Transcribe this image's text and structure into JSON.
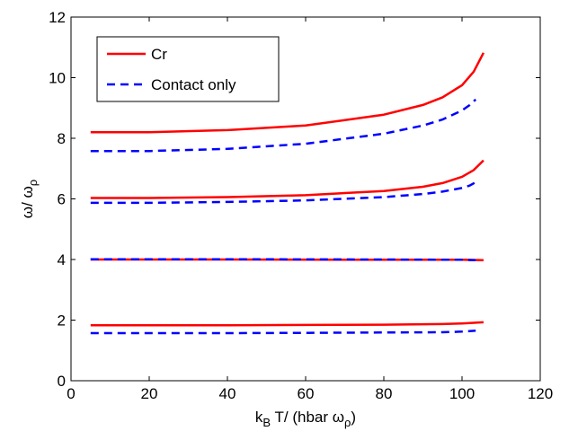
{
  "chart_data": {
    "type": "line",
    "xlabel_main": "k",
    "xlabel_sub": "B",
    "xlabel_rest": " T/ (hbar ω",
    "xlabel_sub2": "ρ",
    "xlabel_end": ")",
    "ylabel_main": "ω/ ω",
    "ylabel_sub": "ρ",
    "xlim": [
      0,
      120
    ],
    "ylim": [
      0,
      12
    ],
    "xticks": [
      0,
      20,
      40,
      60,
      80,
      100,
      120
    ],
    "yticks": [
      0,
      2,
      4,
      6,
      8,
      10,
      12
    ],
    "grid": false,
    "legend_position": "top-left",
    "legend": [
      {
        "name": "Cr",
        "color": "#ff0000",
        "dash": false
      },
      {
        "name": "Contact only",
        "color": "#0000ff",
        "dash": true
      }
    ],
    "series": [
      {
        "name": "Cr",
        "color": "#ff0000",
        "dash": false,
        "x": [
          5,
          20,
          40,
          60,
          80,
          90,
          95,
          100,
          103,
          105.5
        ],
        "y": [
          8.2,
          8.2,
          8.27,
          8.42,
          8.78,
          9.1,
          9.35,
          9.75,
          10.2,
          10.82
        ]
      },
      {
        "name": "Contact only",
        "color": "#0000ff",
        "dash": true,
        "x": [
          5,
          20,
          40,
          60,
          80,
          90,
          95,
          100,
          102,
          103.5
        ],
        "y": [
          7.58,
          7.58,
          7.65,
          7.82,
          8.15,
          8.42,
          8.62,
          8.92,
          9.1,
          9.28
        ]
      },
      {
        "name": "Cr",
        "color": "#ff0000",
        "dash": false,
        "x": [
          5,
          20,
          40,
          60,
          80,
          90,
          95,
          100,
          103,
          105.5
        ],
        "y": [
          6.03,
          6.03,
          6.06,
          6.12,
          6.26,
          6.4,
          6.52,
          6.73,
          6.95,
          7.27
        ]
      },
      {
        "name": "Contact only",
        "color": "#0000ff",
        "dash": true,
        "x": [
          5,
          20,
          40,
          60,
          80,
          90,
          95,
          100,
          102,
          103.5
        ],
        "y": [
          5.87,
          5.87,
          5.9,
          5.95,
          6.06,
          6.16,
          6.24,
          6.36,
          6.44,
          6.55
        ]
      },
      {
        "name": "Cr",
        "color": "#ff0000",
        "dash": false,
        "x": [
          5,
          40,
          80,
          100,
          105.5
        ],
        "y": [
          4.0,
          4.0,
          3.99,
          3.99,
          3.98
        ]
      },
      {
        "name": "Contact only",
        "color": "#0000ff",
        "dash": true,
        "x": [
          5,
          40,
          80,
          100,
          103.5
        ],
        "y": [
          4.01,
          4.01,
          4.0,
          3.99,
          3.98
        ]
      },
      {
        "name": "Cr",
        "color": "#ff0000",
        "dash": false,
        "x": [
          5,
          20,
          40,
          60,
          80,
          95,
          100,
          105.5
        ],
        "y": [
          1.83,
          1.83,
          1.83,
          1.84,
          1.85,
          1.87,
          1.89,
          1.93
        ]
      },
      {
        "name": "Contact only",
        "color": "#0000ff",
        "dash": true,
        "x": [
          5,
          20,
          40,
          60,
          80,
          95,
          100,
          103.5
        ],
        "y": [
          1.57,
          1.57,
          1.57,
          1.58,
          1.59,
          1.6,
          1.62,
          1.65
        ]
      }
    ]
  }
}
